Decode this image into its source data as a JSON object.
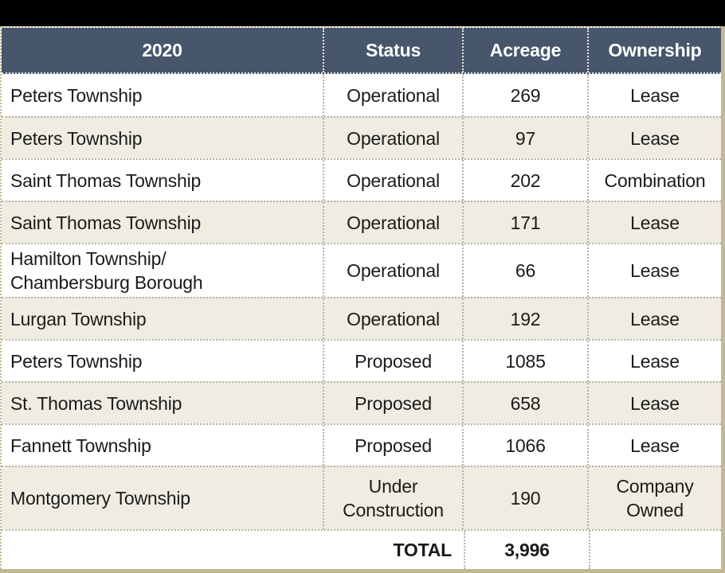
{
  "figure": {
    "type": "acreage-table",
    "colors": {
      "page_background": "#000000",
      "header_background": "#47566b",
      "header_text": "#ffffff",
      "row_white": "#ffffff",
      "row_beige": "#efede2",
      "grid_dotted": "#b3b2a4",
      "frame_tan": "#c3b794",
      "body_text": "#1b1b1b"
    }
  },
  "table": {
    "header": {
      "year": "2020",
      "status": "Status",
      "acreage": "Acreage",
      "ownership": "Ownership"
    },
    "rows": [
      {
        "township": "Peters Township",
        "status": "Operational",
        "acreage": "269",
        "ownership": "Lease"
      },
      {
        "township": "Peters Township",
        "status": "Operational",
        "acreage": "97",
        "ownership": "Lease"
      },
      {
        "township": "Saint Thomas Township",
        "status": "Operational",
        "acreage": "202",
        "ownership": "Combination"
      },
      {
        "township": "Saint Thomas Township",
        "status": "Operational",
        "acreage": "171",
        "ownership": "Lease"
      },
      {
        "township": "Hamilton Township/\nChambersburg Borough",
        "status": "Operational",
        "acreage": "66",
        "ownership": "Lease"
      },
      {
        "township": "Lurgan Township",
        "status": "Operational",
        "acreage": "192",
        "ownership": "Lease"
      },
      {
        "township": "Peters Township",
        "status": "Proposed",
        "acreage": "1085",
        "ownership": "Lease"
      },
      {
        "township": "St. Thomas Township",
        "status": "Proposed",
        "acreage": "658",
        "ownership": "Lease"
      },
      {
        "township": "Fannett Township",
        "status": "Proposed",
        "acreage": "1066",
        "ownership": "Lease"
      },
      {
        "township": "Montgomery Township",
        "status": "Under Construction",
        "acreage": "190",
        "ownership": "Company Owned"
      }
    ],
    "total": {
      "label": "TOTAL",
      "value": "3,996"
    }
  },
  "chart_data": {
    "type": "table",
    "title": "2020 acreage by township",
    "columns": [
      "2020",
      "Status",
      "Acreage",
      "Ownership"
    ],
    "rows": [
      [
        "Peters Township",
        "Operational",
        269,
        "Lease"
      ],
      [
        "Peters Township",
        "Operational",
        97,
        "Lease"
      ],
      [
        "Saint Thomas Township",
        "Operational",
        202,
        "Combination"
      ],
      [
        "Saint Thomas Township",
        "Operational",
        171,
        "Lease"
      ],
      [
        "Hamilton Township/ Chambersburg Borough",
        "Operational",
        66,
        "Lease"
      ],
      [
        "Lurgan Township",
        "Operational",
        192,
        "Lease"
      ],
      [
        "Peters Township",
        "Proposed",
        1085,
        "Lease"
      ],
      [
        "St. Thomas Township",
        "Proposed",
        658,
        "Lease"
      ],
      [
        "Fannett Township",
        "Proposed",
        1066,
        "Lease"
      ],
      [
        "Montgomery Township",
        "Under Construction",
        190,
        "Company Owned"
      ]
    ],
    "total_acreage": "3,996"
  }
}
